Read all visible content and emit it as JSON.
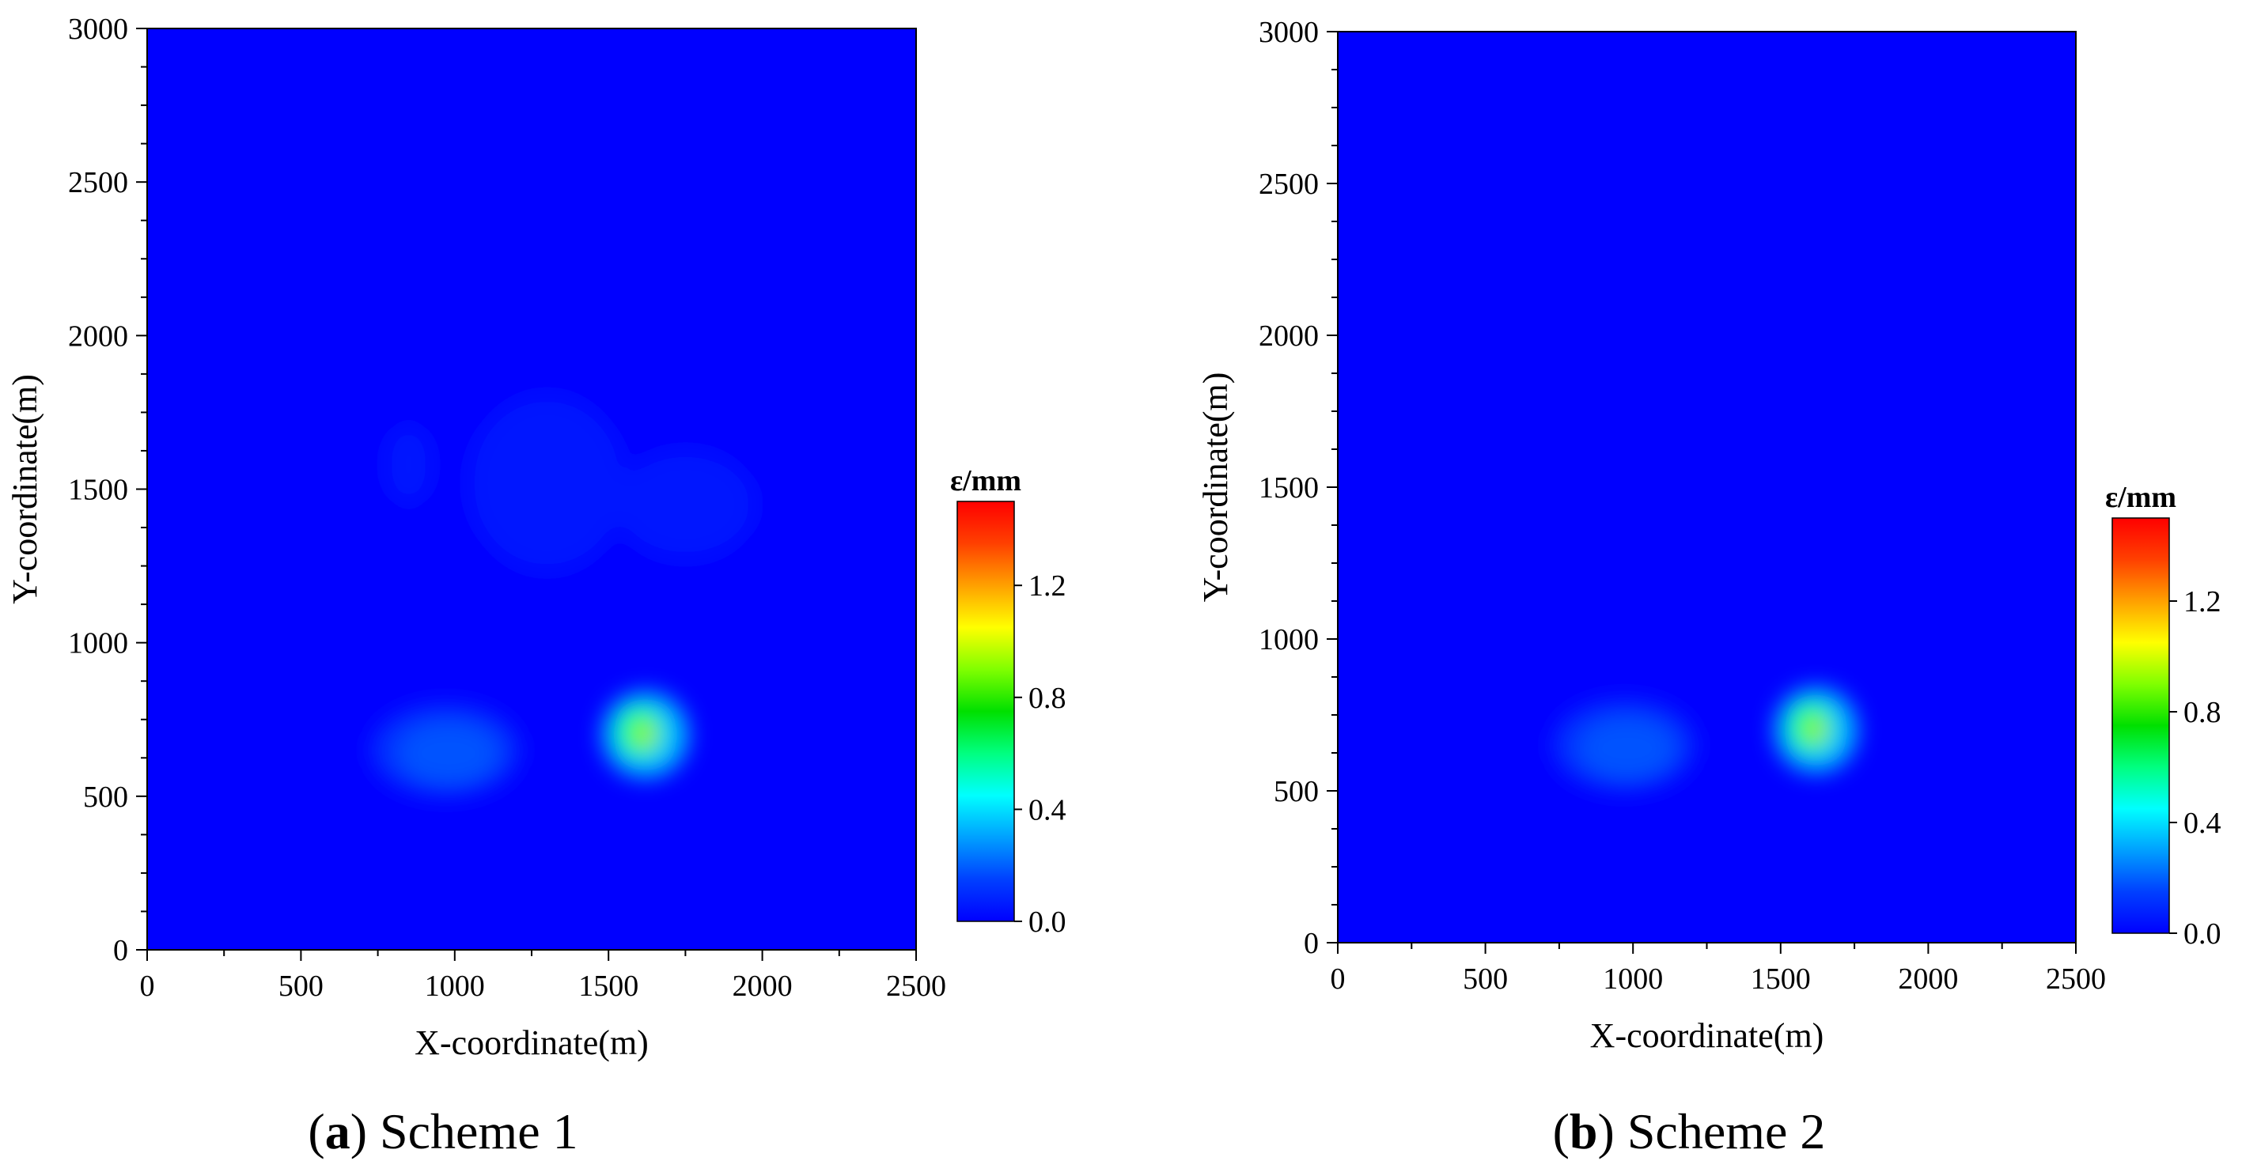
{
  "figure": {
    "panel_a": {
      "caption_open": "(",
      "caption_letter": "a",
      "caption_rest": ") Scheme 1"
    },
    "panel_b": {
      "caption_open": "(",
      "caption_letter": "b",
      "caption_rest": ") Scheme 2"
    }
  },
  "colors": {
    "background_field": "#0000ff",
    "colormap": [
      "#0000ff",
      "#0040ff",
      "#00a0ff",
      "#00ffff",
      "#00ff80",
      "#00e000",
      "#80ff00",
      "#ffff00",
      "#ffa000",
      "#ff4000",
      "#ff0000"
    ]
  },
  "chart_data": [
    {
      "type": "heatmap",
      "title": "Scheme 1",
      "xlabel": "X-coordinate(m)",
      "ylabel": "Y-coordinate(m)",
      "xlim": [
        0,
        2500
      ],
      "ylim": [
        0,
        3000
      ],
      "xticks": [
        0,
        500,
        1000,
        1500,
        2000,
        2500
      ],
      "yticks": [
        0,
        500,
        1000,
        1500,
        2000,
        2500,
        3000
      ],
      "colorbar": {
        "label": "ε/mm",
        "range": [
          0.0,
          1.5
        ],
        "ticks": [
          "0.0",
          "0.4",
          "0.8",
          "1.2"
        ],
        "tick_values": [
          0.0,
          0.4,
          0.8,
          1.2
        ]
      },
      "regions": [
        {
          "x": 1620,
          "y": 700,
          "rx": 140,
          "ry": 140,
          "value": 0.35
        },
        {
          "x": 1600,
          "y": 710,
          "rx": 70,
          "ry": 80,
          "value": 0.6
        },
        {
          "x": 1620,
          "y": 700,
          "rx": 30,
          "ry": 50,
          "value": 0.9
        },
        {
          "x": 1620,
          "y": 700,
          "rx": 10,
          "ry": 20,
          "value": 1.2
        },
        {
          "x": 970,
          "y": 650,
          "rx": 240,
          "ry": 150,
          "value": 0.12
        },
        {
          "x": 980,
          "y": 640,
          "rx": 160,
          "ry": 100,
          "value": 0.18
        },
        {
          "x": 1300,
          "y": 1520,
          "rx": 260,
          "ry": 290,
          "value": 0.05
        },
        {
          "x": 1750,
          "y": 1450,
          "rx": 230,
          "ry": 180,
          "value": 0.05
        },
        {
          "x": 850,
          "y": 1580,
          "rx": 80,
          "ry": 130,
          "value": 0.05
        }
      ]
    },
    {
      "type": "heatmap",
      "title": "Scheme 2",
      "xlabel": "X-coordinate(m)",
      "ylabel": "Y-coordinate(m)",
      "xlim": [
        0,
        2500
      ],
      "ylim": [
        0,
        3000
      ],
      "xticks": [
        0,
        500,
        1000,
        1500,
        2000,
        2500
      ],
      "yticks": [
        0,
        500,
        1000,
        1500,
        2000,
        2500,
        3000
      ],
      "colorbar": {
        "label": "ε/mm",
        "range": [
          0.0,
          1.5
        ],
        "ticks": [
          "0.0",
          "0.4",
          "0.8",
          "1.2"
        ],
        "tick_values": [
          0.0,
          0.4,
          0.8,
          1.2
        ]
      },
      "regions": [
        {
          "x": 1620,
          "y": 700,
          "rx": 140,
          "ry": 140,
          "value": 0.35
        },
        {
          "x": 1600,
          "y": 710,
          "rx": 70,
          "ry": 80,
          "value": 0.6
        },
        {
          "x": 1620,
          "y": 700,
          "rx": 30,
          "ry": 50,
          "value": 0.9
        },
        {
          "x": 1620,
          "y": 700,
          "rx": 10,
          "ry": 20,
          "value": 1.2
        },
        {
          "x": 970,
          "y": 650,
          "rx": 240,
          "ry": 150,
          "value": 0.12
        },
        {
          "x": 980,
          "y": 640,
          "rx": 160,
          "ry": 100,
          "value": 0.18
        }
      ]
    }
  ]
}
